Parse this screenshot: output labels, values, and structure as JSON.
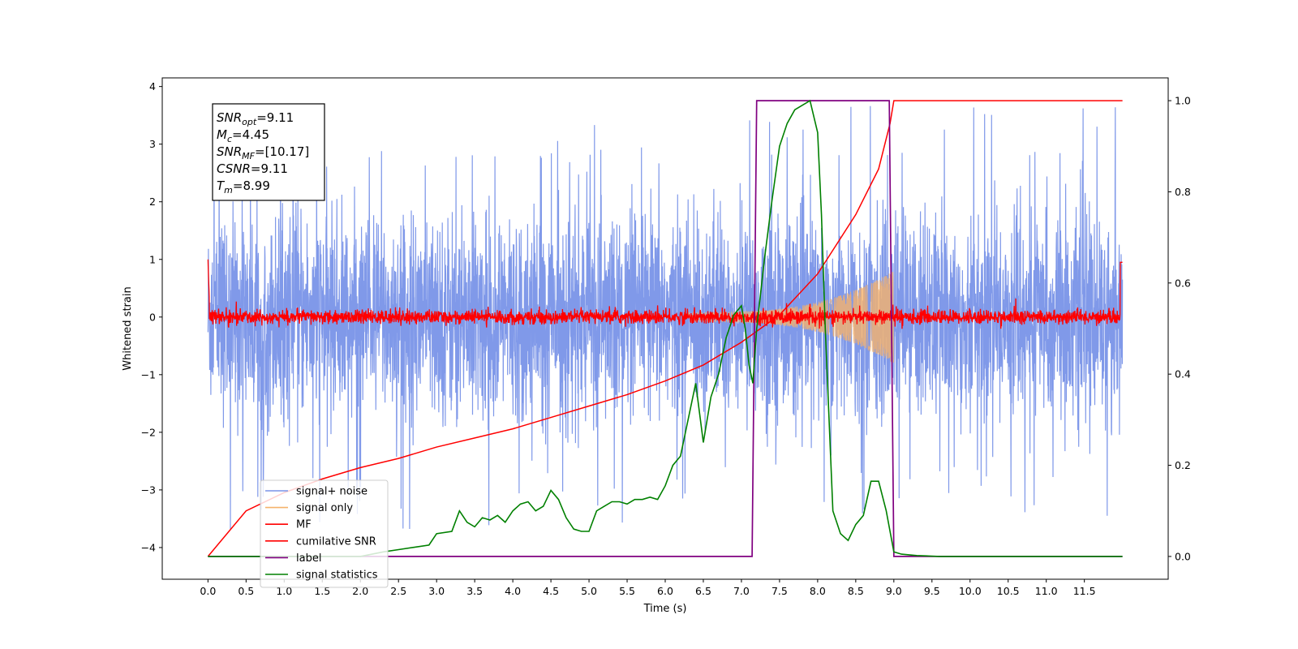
{
  "chart_data": {
    "type": "line",
    "xlabel": "Time (s)",
    "ylabel": "Whitened strain",
    "xlim": [
      -0.6,
      12.6
    ],
    "ylim": [
      -4.55,
      4.15
    ],
    "y2lim": [
      -0.05,
      1.05
    ],
    "grid": false,
    "legend_position": "lower-left",
    "x_ticks": [
      "0.0",
      "0.5",
      "1.0",
      "1.5",
      "2.0",
      "2.5",
      "3.0",
      "3.5",
      "4.0",
      "4.5",
      "5.0",
      "5.5",
      "6.0",
      "6.5",
      "7.0",
      "7.5",
      "8.0",
      "8.5",
      "9.0",
      "9.5",
      "10.0",
      "10.5",
      "11.0",
      "11.5"
    ],
    "y_ticks": [
      "4",
      "3",
      "2",
      "1",
      "0",
      "−1",
      "−2",
      "−3",
      "−4"
    ],
    "y2_ticks": [
      "1.0",
      "0.8",
      "0.6",
      "0.4",
      "0.2",
      "0.0"
    ],
    "annotation": {
      "lines": [
        {
          "main": "SNR",
          "sub": "opt",
          "rest": "=9.11"
        },
        {
          "main": "M",
          "sub": "c",
          "rest": "=4.45"
        },
        {
          "main": "SNR",
          "sub": "MF",
          "rest": "=[10.17]"
        },
        {
          "main": "CSNR",
          "sub": "",
          "rest": "=9.11"
        },
        {
          "main": "T",
          "sub": "m",
          "rest": "=8.99"
        }
      ]
    },
    "series": [
      {
        "name": "signal+ noise",
        "color": "#7994e8",
        "axis": "left",
        "description": "whitened noise, amplitude ~±2.2 with spikes to ±3.7, from t=0 to 12"
      },
      {
        "name": "signal only",
        "color": "#f5b26b",
        "axis": "left",
        "description": "chirp envelope growing from ~0.1 at t=6.5 to ~0.8 at t=8.99"
      },
      {
        "name": "MF",
        "color": "#ff0000",
        "axis": "left",
        "description": "noise around 0, amplitude ~±0.15"
      },
      {
        "name": "cumilative SNR",
        "color": "#ff0000",
        "axis": "right",
        "x": [
          0.0,
          0.5,
          1.0,
          1.5,
          2.0,
          2.5,
          3.0,
          3.5,
          4.0,
          4.5,
          5.0,
          5.5,
          6.0,
          6.5,
          7.0,
          7.5,
          8.0,
          8.5,
          8.8,
          8.95,
          9.0,
          12.0
        ],
        "values": [
          0.0,
          0.1,
          0.14,
          0.17,
          0.195,
          0.215,
          0.24,
          0.26,
          0.28,
          0.305,
          0.33,
          0.355,
          0.385,
          0.42,
          0.47,
          0.53,
          0.62,
          0.75,
          0.85,
          0.95,
          1.0,
          1.0
        ]
      },
      {
        "name": "label",
        "color": "#800080",
        "axis": "right",
        "x": [
          0.0,
          7.14,
          7.2,
          8.94,
          9.0,
          12.0
        ],
        "values": [
          0.0,
          0.0,
          1.0,
          1.0,
          0.0,
          0.0
        ]
      },
      {
        "name": "signal statistics",
        "color": "#008000",
        "axis": "right",
        "x": [
          0.0,
          0.5,
          1.0,
          1.5,
          2.0,
          2.3,
          2.5,
          2.7,
          2.9,
          3.0,
          3.2,
          3.3,
          3.4,
          3.5,
          3.6,
          3.7,
          3.8,
          3.9,
          4.0,
          4.1,
          4.2,
          4.3,
          4.4,
          4.5,
          4.6,
          4.7,
          4.8,
          4.9,
          5.0,
          5.1,
          5.2,
          5.3,
          5.4,
          5.5,
          5.6,
          5.7,
          5.8,
          5.9,
          6.0,
          6.1,
          6.2,
          6.3,
          6.4,
          6.5,
          6.6,
          6.7,
          6.8,
          6.9,
          7.0,
          7.05,
          7.1,
          7.15,
          7.2,
          7.3,
          7.4,
          7.5,
          7.6,
          7.7,
          7.8,
          7.9,
          8.0,
          8.05,
          8.1,
          8.2,
          8.3,
          8.4,
          8.5,
          8.6,
          8.7,
          8.8,
          8.9,
          9.0,
          9.1,
          9.3,
          9.6,
          10.0,
          11.0,
          12.0
        ],
        "values": [
          0.0,
          0.0,
          0.0,
          0.0,
          0.0,
          0.01,
          0.015,
          0.02,
          0.025,
          0.05,
          0.055,
          0.1,
          0.075,
          0.065,
          0.085,
          0.08,
          0.09,
          0.075,
          0.1,
          0.115,
          0.12,
          0.1,
          0.11,
          0.145,
          0.125,
          0.085,
          0.06,
          0.055,
          0.055,
          0.1,
          0.11,
          0.12,
          0.12,
          0.115,
          0.125,
          0.125,
          0.13,
          0.125,
          0.155,
          0.2,
          0.22,
          0.3,
          0.38,
          0.25,
          0.35,
          0.4,
          0.48,
          0.53,
          0.55,
          0.5,
          0.42,
          0.38,
          0.5,
          0.65,
          0.78,
          0.9,
          0.95,
          0.98,
          0.99,
          1.0,
          0.93,
          0.75,
          0.5,
          0.1,
          0.05,
          0.035,
          0.07,
          0.09,
          0.165,
          0.165,
          0.1,
          0.01,
          0.005,
          0.002,
          0.0,
          0.0,
          0.0,
          0.0
        ]
      }
    ]
  }
}
